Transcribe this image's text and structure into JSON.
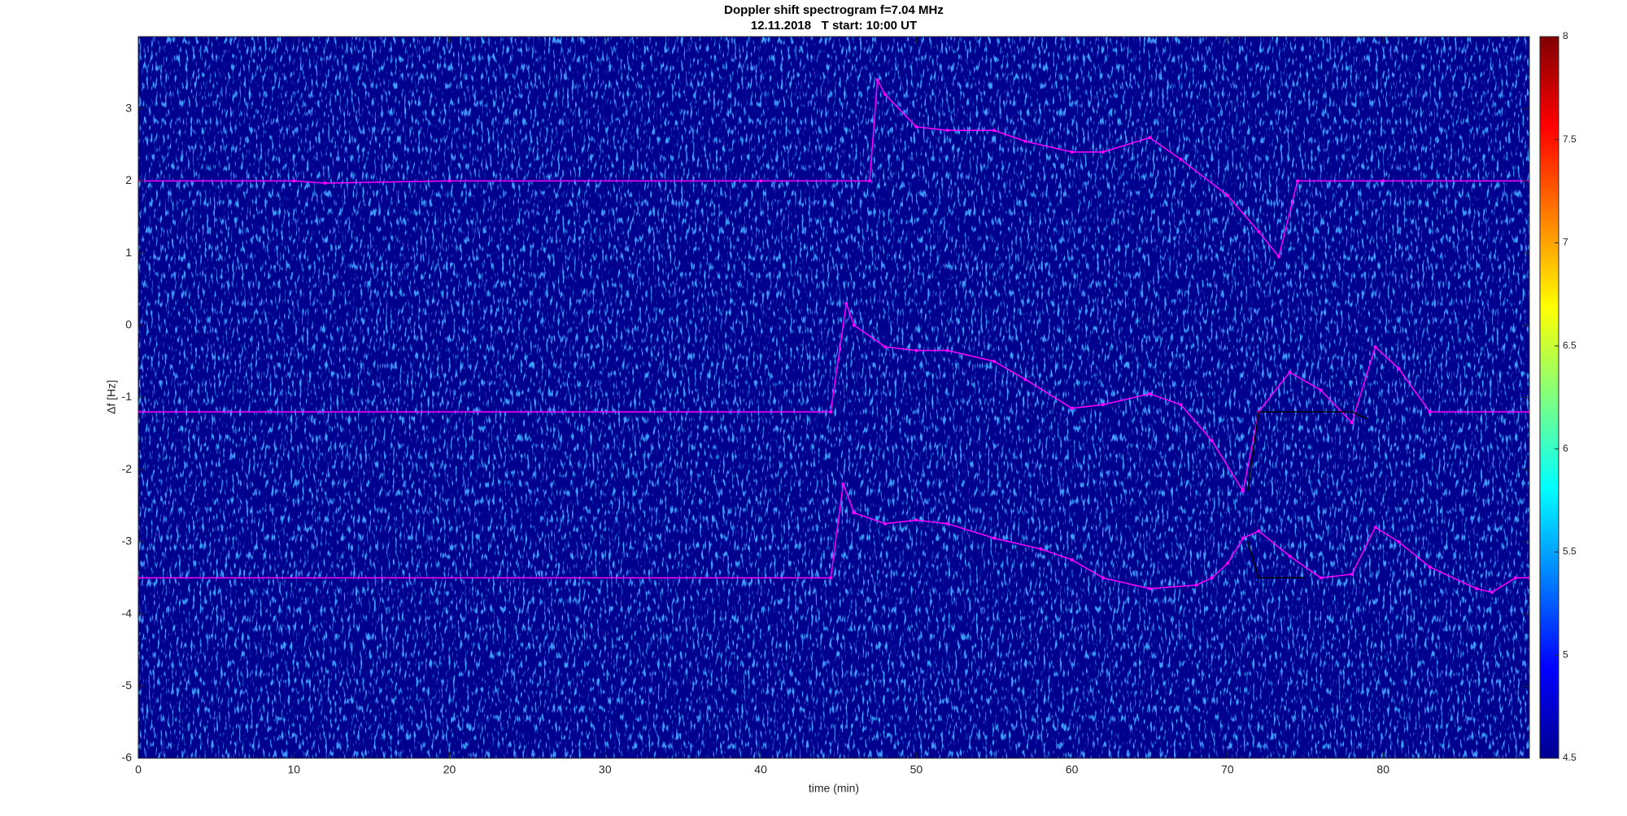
{
  "chart_data": {
    "type": "spectrogram",
    "title": "Doppler shift spectrogram f=7.04 MHz",
    "subtitle": "12.11.2018   T start: 10:00 UT",
    "x_label": "time (min)",
    "y_label": "Δf [Hz]",
    "xlim": [
      0,
      89.4
    ],
    "ylim": [
      -6,
      4
    ],
    "xticks": [
      0,
      10,
      20,
      30,
      40,
      50,
      60,
      70,
      80
    ],
    "yticks": [
      -6,
      -5,
      -4,
      -3,
      -2,
      -1,
      0,
      1,
      2,
      3
    ],
    "colormap": "jet",
    "clim": [
      4.5,
      8
    ],
    "cticks": [
      4.5,
      5,
      5.5,
      6,
      6.5,
      7,
      7.5,
      8
    ],
    "series": [
      {
        "color": "#ff00ff",
        "x": [
          0,
          10,
          12,
          20,
          40,
          47,
          47.5,
          48,
          50,
          52,
          55,
          57,
          60,
          62,
          65,
          67,
          70,
          72,
          73.3,
          74.5,
          80,
          89.4
        ],
        "values": [
          2,
          2,
          1.97,
          2,
          2,
          2,
          3.4,
          3.2,
          2.75,
          2.7,
          2.7,
          2.55,
          2.4,
          2.4,
          2.6,
          2.3,
          1.8,
          1.3,
          0.95,
          2,
          2,
          2
        ]
      },
      {
        "color": "#ff00ff",
        "x": [
          0,
          44.5,
          45.5,
          46,
          48,
          50,
          52,
          55,
          57,
          60,
          62,
          65,
          67,
          69,
          71,
          72,
          74,
          76,
          78,
          79.5,
          81,
          83,
          89.4
        ],
        "values": [
          -1.2,
          -1.2,
          0.3,
          0,
          -0.3,
          -0.35,
          -0.35,
          -0.5,
          -0.75,
          -1.15,
          -1.1,
          -0.95,
          -1.1,
          -1.6,
          -2.3,
          -1.2,
          -0.65,
          -0.9,
          -1.35,
          -0.3,
          -0.6,
          -1.2,
          -1.2
        ]
      },
      {
        "color": "#ff00ff",
        "x": [
          0,
          44.5,
          45.3,
          46,
          48,
          50,
          52,
          55,
          58,
          60,
          62,
          65,
          68,
          69,
          70,
          71,
          72,
          74,
          76,
          78,
          79.5,
          81,
          83,
          86,
          87,
          88.5,
          89.4
        ],
        "values": [
          -3.5,
          -3.5,
          -2.2,
          -2.6,
          -2.75,
          -2.7,
          -2.75,
          -2.95,
          -3.1,
          -3.25,
          -3.5,
          -3.65,
          -3.6,
          -3.5,
          -3.3,
          -2.95,
          -2.85,
          -3.2,
          -3.5,
          -3.45,
          -2.8,
          -3.0,
          -3.35,
          -3.65,
          -3.7,
          -3.5,
          -3.5
        ]
      },
      {
        "color": "#000000",
        "x": [
          71.3,
          72,
          78,
          79
        ],
        "values": [
          -2.3,
          -1.2,
          -1.2,
          -1.3
        ]
      },
      {
        "color": "#000000",
        "x": [
          71.3,
          72,
          75
        ],
        "values": [
          -3.0,
          -3.5,
          -3.5
        ]
      }
    ]
  }
}
